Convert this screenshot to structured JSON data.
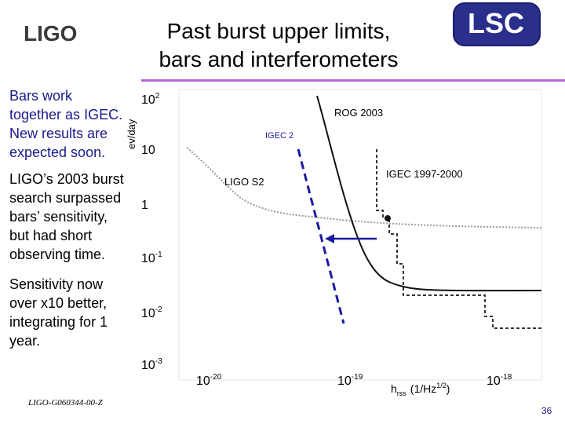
{
  "slide": {
    "title_line1": "Past burst upper limits,",
    "title_line2": "bars and interferometers",
    "ligo_logo_text": "LIGO",
    "lsc_logo_text": "LSC",
    "footer_id": "LIGO-G060344-00-Z",
    "page_number": "36"
  },
  "bullets": [
    "Bars work together as IGEC. New results are expected soon.",
    "LIGO’s 2003 burst search surpassed bars’ sensitivity, but had short observing time.",
    "Sensitivity now over x10 better, integrating for 1 year."
  ],
  "chart_data": {
    "type": "line",
    "ylabel": "ev/day",
    "xlabel_main": "h",
    "xlabel_sub": "rss",
    "xlabel_units": "(1/Hz",
    "xlabel_exp": "1/2",
    "xlabel_close": ")",
    "y_ticks": [
      {
        "base": "10",
        "exp": "2"
      },
      {
        "base": "10",
        "exp": ""
      },
      {
        "base": "1",
        "exp": ""
      },
      {
        "base": "10",
        "exp": "-1"
      },
      {
        "base": "10",
        "exp": "-2"
      },
      {
        "base": "10",
        "exp": "-3"
      }
    ],
    "x_ticks": [
      {
        "base": "10",
        "exp": "-20"
      },
      {
        "base": "10",
        "exp": "-19"
      },
      {
        "base": "10",
        "exp": "-18"
      }
    ],
    "series_labels": {
      "rog": "ROG 2003",
      "igec2": "IGEC 2",
      "ligo": "LIGO S2",
      "igec": "IGEC 1997-2000"
    }
  }
}
